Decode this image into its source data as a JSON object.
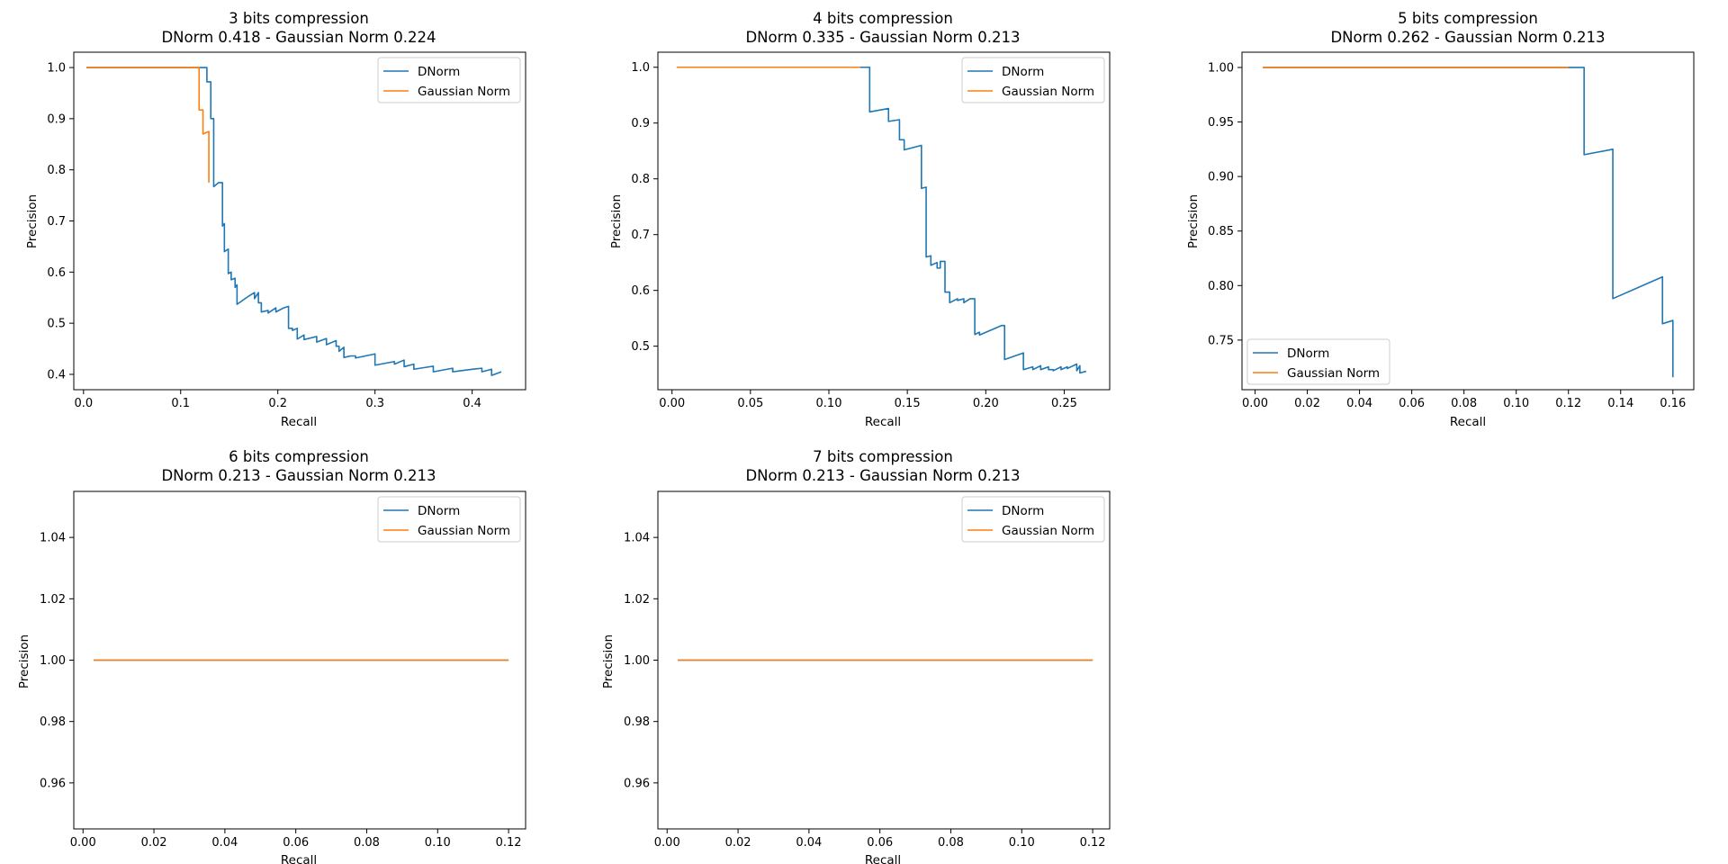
{
  "colors": {
    "dnorm": "#1f77b4",
    "gaussian": "#ff7f0e"
  },
  "chart_data": [
    {
      "type": "line",
      "title": "3 bits compression",
      "subtitle": "DNorm 0.418 - Gaussian Norm 0.224",
      "xlabel": "Recall",
      "ylabel": "Precision",
      "xlim": [
        -0.01,
        0.455
      ],
      "ylim": [
        0.37,
        1.03
      ],
      "xticks": [
        0.0,
        0.1,
        0.2,
        0.3,
        0.4
      ],
      "xtick_labels": [
        "0.0",
        "0.1",
        "0.2",
        "0.3",
        "0.4"
      ],
      "yticks": [
        0.4,
        0.5,
        0.6,
        0.7,
        0.8,
        0.9,
        1.0
      ],
      "ytick_labels": [
        "0.4",
        "0.5",
        "0.6",
        "0.7",
        "0.8",
        "0.9",
        "1.0"
      ],
      "legend_position": "upper right",
      "series": [
        {
          "name": "DNorm",
          "color": "#1f77b4",
          "points": [
            [
              0.003,
              1.0
            ],
            [
              0.127,
              1.0
            ],
            [
              0.127,
              0.972
            ],
            [
              0.131,
              0.972
            ],
            [
              0.131,
              0.9
            ],
            [
              0.134,
              0.9
            ],
            [
              0.134,
              0.767
            ],
            [
              0.139,
              0.775
            ],
            [
              0.143,
              0.775
            ],
            [
              0.143,
              0.69
            ],
            [
              0.145,
              0.695
            ],
            [
              0.145,
              0.64
            ],
            [
              0.149,
              0.645
            ],
            [
              0.149,
              0.597
            ],
            [
              0.152,
              0.6
            ],
            [
              0.152,
              0.585
            ],
            [
              0.156,
              0.588
            ],
            [
              0.156,
              0.57
            ],
            [
              0.158,
              0.575
            ],
            [
              0.158,
              0.537
            ],
            [
              0.17,
              0.553
            ],
            [
              0.176,
              0.56
            ],
            [
              0.176,
              0.548
            ],
            [
              0.18,
              0.56
            ],
            [
              0.18,
              0.54
            ],
            [
              0.183,
              0.54
            ],
            [
              0.183,
              0.522
            ],
            [
              0.19,
              0.525
            ],
            [
              0.19,
              0.52
            ],
            [
              0.198,
              0.53
            ],
            [
              0.198,
              0.522
            ],
            [
              0.206,
              0.53
            ],
            [
              0.211,
              0.533
            ],
            [
              0.211,
              0.49
            ],
            [
              0.215,
              0.49
            ],
            [
              0.215,
              0.486
            ],
            [
              0.22,
              0.49
            ],
            [
              0.22,
              0.469
            ],
            [
              0.227,
              0.477
            ],
            [
              0.227,
              0.468
            ],
            [
              0.24,
              0.474
            ],
            [
              0.24,
              0.463
            ],
            [
              0.25,
              0.47
            ],
            [
              0.25,
              0.458
            ],
            [
              0.26,
              0.466
            ],
            [
              0.26,
              0.455
            ],
            [
              0.263,
              0.455
            ],
            [
              0.263,
              0.445
            ],
            [
              0.268,
              0.453
            ],
            [
              0.268,
              0.433
            ],
            [
              0.275,
              0.436
            ],
            [
              0.28,
              0.436
            ],
            [
              0.28,
              0.432
            ],
            [
              0.3,
              0.44
            ],
            [
              0.3,
              0.418
            ],
            [
              0.32,
              0.425
            ],
            [
              0.32,
              0.42
            ],
            [
              0.33,
              0.428
            ],
            [
              0.33,
              0.415
            ],
            [
              0.34,
              0.42
            ],
            [
              0.34,
              0.41
            ],
            [
              0.36,
              0.416
            ],
            [
              0.36,
              0.405
            ],
            [
              0.38,
              0.412
            ],
            [
              0.38,
              0.405
            ],
            [
              0.4,
              0.41
            ],
            [
              0.41,
              0.412
            ],
            [
              0.41,
              0.405
            ],
            [
              0.42,
              0.41
            ],
            [
              0.42,
              0.398
            ],
            [
              0.43,
              0.405
            ]
          ]
        },
        {
          "name": "Gaussian Norm",
          "color": "#ff7f0e",
          "points": [
            [
              0.003,
              1.0
            ],
            [
              0.119,
              1.0
            ],
            [
              0.119,
              0.917
            ],
            [
              0.123,
              0.917
            ],
            [
              0.123,
              0.87
            ],
            [
              0.129,
              0.875
            ],
            [
              0.129,
              0.775
            ]
          ]
        }
      ]
    },
    {
      "type": "line",
      "title": "4 bits compression",
      "subtitle": "DNorm 0.335 - Gaussian Norm 0.213",
      "xlabel": "Recall",
      "ylabel": "Precision",
      "xlim": [
        -0.009,
        0.279
      ],
      "ylim": [
        0.422,
        1.027
      ],
      "xticks": [
        0.0,
        0.05,
        0.1,
        0.15,
        0.2,
        0.25
      ],
      "xtick_labels": [
        "0.00",
        "0.05",
        "0.10",
        "0.15",
        "0.20",
        "0.25"
      ],
      "yticks": [
        0.5,
        0.6,
        0.7,
        0.8,
        0.9,
        1.0
      ],
      "ytick_labels": [
        "0.5",
        "0.6",
        "0.7",
        "0.8",
        "0.9",
        "1.0"
      ],
      "legend_position": "upper right",
      "series": [
        {
          "name": "DNorm",
          "color": "#1f77b4",
          "points": [
            [
              0.003,
              1.0
            ],
            [
              0.126,
              1.0
            ],
            [
              0.126,
              0.92
            ],
            [
              0.138,
              0.926
            ],
            [
              0.138,
              0.903
            ],
            [
              0.145,
              0.906
            ],
            [
              0.145,
              0.87
            ],
            [
              0.148,
              0.87
            ],
            [
              0.148,
              0.852
            ],
            [
              0.159,
              0.86
            ],
            [
              0.159,
              0.783
            ],
            [
              0.162,
              0.785
            ],
            [
              0.162,
              0.66
            ],
            [
              0.165,
              0.662
            ],
            [
              0.165,
              0.645
            ],
            [
              0.169,
              0.65
            ],
            [
              0.169,
              0.64
            ],
            [
              0.171,
              0.64
            ],
            [
              0.171,
              0.652
            ],
            [
              0.174,
              0.652
            ],
            [
              0.174,
              0.597
            ],
            [
              0.177,
              0.597
            ],
            [
              0.177,
              0.578
            ],
            [
              0.182,
              0.585
            ],
            [
              0.182,
              0.582
            ],
            [
              0.186,
              0.585
            ],
            [
              0.186,
              0.578
            ],
            [
              0.19,
              0.585
            ],
            [
              0.193,
              0.585
            ],
            [
              0.193,
              0.521
            ],
            [
              0.196,
              0.525
            ],
            [
              0.196,
              0.52
            ],
            [
              0.21,
              0.537
            ],
            [
              0.212,
              0.537
            ],
            [
              0.212,
              0.476
            ],
            [
              0.224,
              0.488
            ],
            [
              0.224,
              0.458
            ],
            [
              0.23,
              0.463
            ],
            [
              0.23,
              0.458
            ],
            [
              0.235,
              0.465
            ],
            [
              0.235,
              0.458
            ],
            [
              0.24,
              0.463
            ],
            [
              0.24,
              0.458
            ],
            [
              0.243,
              0.458
            ],
            [
              0.243,
              0.456
            ],
            [
              0.248,
              0.463
            ],
            [
              0.248,
              0.458
            ],
            [
              0.252,
              0.463
            ],
            [
              0.252,
              0.46
            ],
            [
              0.258,
              0.468
            ],
            [
              0.258,
              0.456
            ],
            [
              0.26,
              0.465
            ],
            [
              0.26,
              0.452
            ],
            [
              0.264,
              0.455
            ]
          ]
        },
        {
          "name": "Gaussian Norm",
          "color": "#ff7f0e",
          "points": [
            [
              0.003,
              1.0
            ],
            [
              0.12,
              1.0
            ]
          ]
        }
      ]
    },
    {
      "type": "line",
      "title": "5 bits compression",
      "subtitle": "DNorm 0.262 - Gaussian Norm 0.213",
      "xlabel": "Recall",
      "ylabel": "Precision",
      "xlim": [
        -0.005,
        0.168
      ],
      "ylim": [
        0.7045,
        1.014
      ],
      "xticks": [
        0.0,
        0.02,
        0.04,
        0.06,
        0.08,
        0.1,
        0.12,
        0.14,
        0.16
      ],
      "xtick_labels": [
        "0.00",
        "0.02",
        "0.04",
        "0.06",
        "0.08",
        "0.10",
        "0.12",
        "0.14",
        "0.16"
      ],
      "yticks": [
        0.75,
        0.8,
        0.85,
        0.9,
        0.95,
        1.0
      ],
      "ytick_labels": [
        "0.75",
        "0.80",
        "0.85",
        "0.90",
        "0.95",
        "1.00"
      ],
      "legend_position": "lower left",
      "series": [
        {
          "name": "DNorm",
          "color": "#1f77b4",
          "points": [
            [
              0.003,
              1.0
            ],
            [
              0.126,
              1.0
            ],
            [
              0.126,
              0.92
            ],
            [
              0.137,
              0.925
            ],
            [
              0.137,
              0.788
            ],
            [
              0.156,
              0.808
            ],
            [
              0.156,
              0.765
            ],
            [
              0.16,
              0.768
            ],
            [
              0.16,
              0.716
            ]
          ]
        },
        {
          "name": "Gaussian Norm",
          "color": "#ff7f0e",
          "points": [
            [
              0.003,
              1.0
            ],
            [
              0.12,
              1.0
            ]
          ]
        }
      ]
    },
    {
      "type": "line",
      "title": "6 bits compression",
      "subtitle": "DNorm 0.213 - Gaussian Norm 0.213",
      "xlabel": "Recall",
      "ylabel": "Precision",
      "xlim": [
        -0.0026,
        0.1248
      ],
      "ylim": [
        0.945,
        1.055
      ],
      "xticks": [
        0.0,
        0.02,
        0.04,
        0.06,
        0.08,
        0.1,
        0.12
      ],
      "xtick_labels": [
        "0.00",
        "0.02",
        "0.04",
        "0.06",
        "0.08",
        "0.10",
        "0.12"
      ],
      "yticks": [
        0.96,
        0.98,
        1.0,
        1.02,
        1.04
      ],
      "ytick_labels": [
        "0.96",
        "0.98",
        "1.00",
        "1.02",
        "1.04"
      ],
      "legend_position": "upper right",
      "series": [
        {
          "name": "DNorm",
          "color": "#1f77b4",
          "points": [
            [
              0.003,
              1.0
            ],
            [
              0.12,
              1.0
            ]
          ]
        },
        {
          "name": "Gaussian Norm",
          "color": "#ff7f0e",
          "points": [
            [
              0.003,
              1.0
            ],
            [
              0.12,
              1.0
            ]
          ]
        }
      ]
    },
    {
      "type": "line",
      "title": "7 bits compression",
      "subtitle": "DNorm 0.213 - Gaussian Norm 0.213",
      "xlabel": "Recall",
      "ylabel": "Precision",
      "xlim": [
        -0.0026,
        0.1248
      ],
      "ylim": [
        0.945,
        1.055
      ],
      "xticks": [
        0.0,
        0.02,
        0.04,
        0.06,
        0.08,
        0.1,
        0.12
      ],
      "xtick_labels": [
        "0.00",
        "0.02",
        "0.04",
        "0.06",
        "0.08",
        "0.10",
        "0.12"
      ],
      "yticks": [
        0.96,
        0.98,
        1.0,
        1.02,
        1.04
      ],
      "ytick_labels": [
        "0.96",
        "0.98",
        "1.00",
        "1.02",
        "1.04"
      ],
      "legend_position": "upper right",
      "series": [
        {
          "name": "DNorm",
          "color": "#1f77b4",
          "points": [
            [
              0.003,
              1.0
            ],
            [
              0.12,
              1.0
            ]
          ]
        },
        {
          "name": "Gaussian Norm",
          "color": "#ff7f0e",
          "points": [
            [
              0.003,
              1.0
            ],
            [
              0.12,
              1.0
            ]
          ]
        }
      ]
    }
  ]
}
